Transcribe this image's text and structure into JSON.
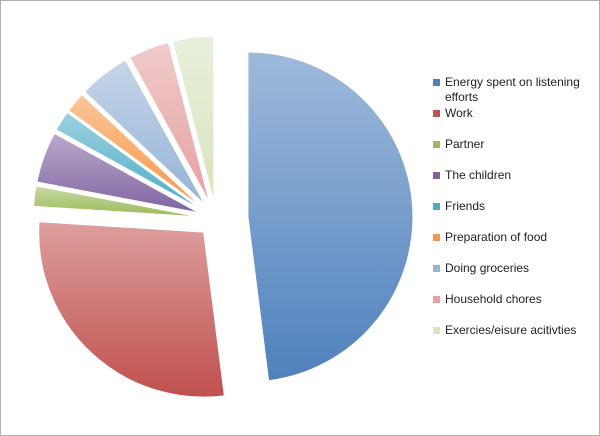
{
  "chart_data": {
    "type": "pie",
    "categories": [
      "Energy spent on listening efforts",
      "Work",
      "Partner",
      "The children",
      "Friends",
      "Preparation of food",
      "Doing groceries",
      "Household chores",
      "Exercies/eisure acitivties"
    ],
    "values": [
      48,
      28,
      2,
      5,
      2,
      2,
      5,
      4,
      4
    ],
    "colors": [
      "#4f81bd",
      "#c0504d",
      "#9bbb59",
      "#8064a2",
      "#4bacc6",
      "#f79646",
      "#95b3d7",
      "#e6a0a0",
      "#d7e4bd"
    ],
    "legend": "right"
  }
}
